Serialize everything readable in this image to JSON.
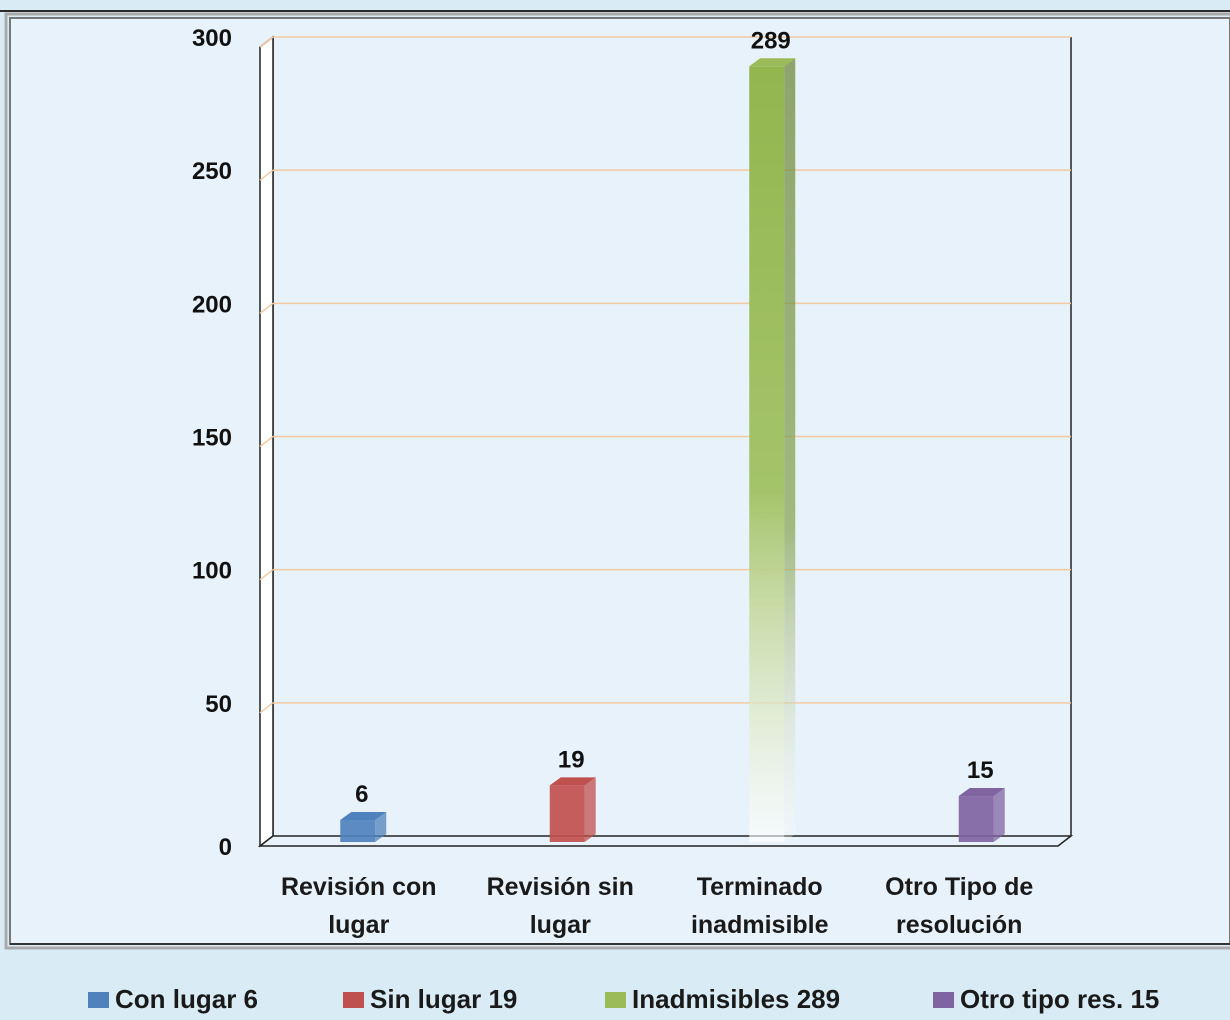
{
  "chart_data": {
    "type": "bar",
    "categories": [
      [
        "Revisión con",
        "lugar"
      ],
      [
        "Revisión sin",
        "lugar"
      ],
      [
        "Terminado",
        "inadmisible"
      ],
      [
        "Otro Tipo de",
        "resolución"
      ]
    ],
    "values": [
      6,
      19,
      289,
      15
    ],
    "data_labels": [
      "6",
      "19",
      "289",
      "15"
    ],
    "ylim": [
      0,
      300
    ],
    "yticks": [
      0,
      50,
      100,
      150,
      200,
      250,
      300
    ],
    "grid": true,
    "colors": [
      "#4f81bd",
      "#c0504d",
      "#9bbb59",
      "#8064a2"
    ],
    "legend": {
      "position": "bottom",
      "entries": [
        {
          "label": "Con lugar  6",
          "color": "#4f81bd"
        },
        {
          "label": "Sin lugar  19",
          "color": "#c0504d"
        },
        {
          "label": "Inadmisibles  289",
          "color": "#9bbb59"
        },
        {
          "label": "Otro tipo res.  15",
          "color": "#8064a2"
        }
      ]
    }
  }
}
